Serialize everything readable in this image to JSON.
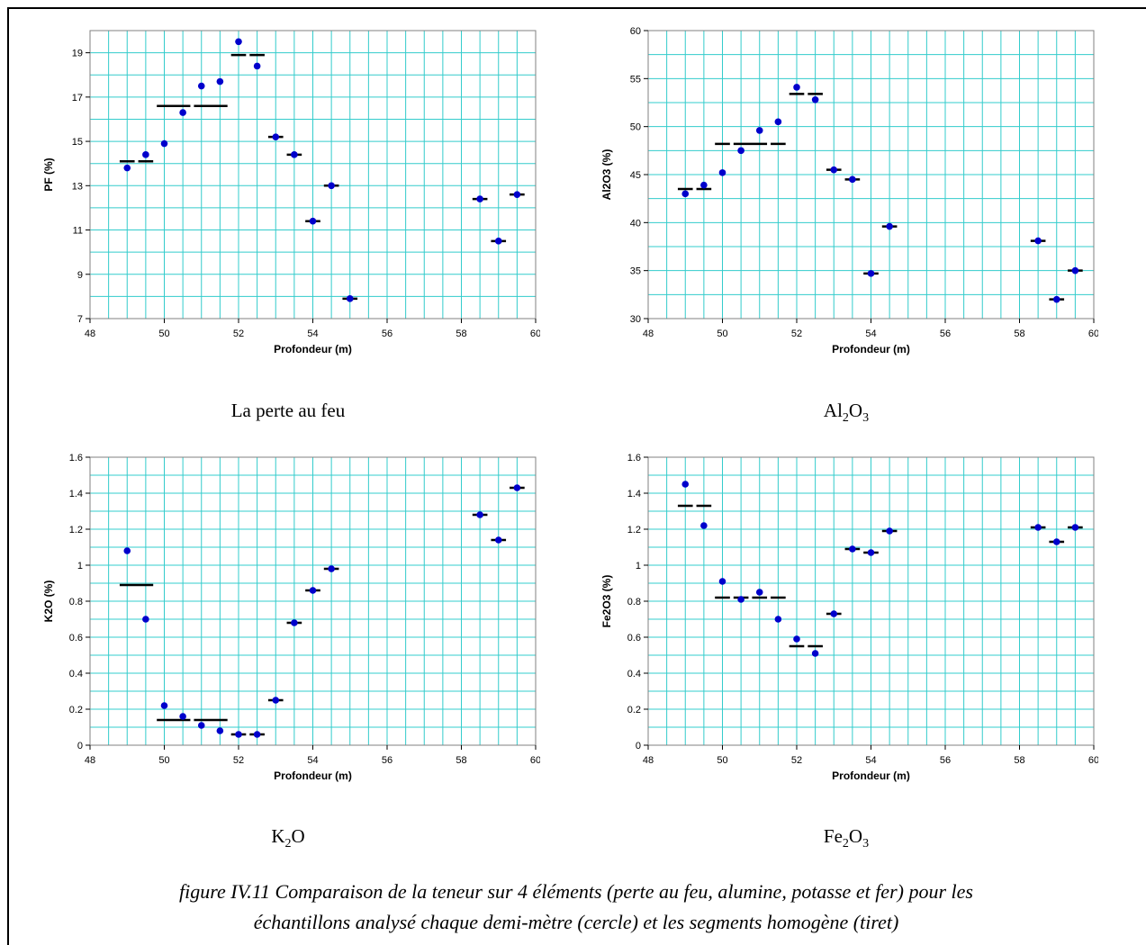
{
  "figure_caption": {
    "line1": "figure IV.11  Comparaison de la teneur sur 4 éléments (perte au feu, alumine, potasse et fer) pour les",
    "line2": "échantillons analysé chaque demi-mètre (cercle) et les segments homogène (tiret)"
  },
  "captions": [
    {
      "main": "La perte au feu",
      "parts": []
    },
    {
      "main": "",
      "parts": [
        [
          "Al",
          ""
        ],
        [
          "2",
          "sub"
        ],
        [
          "O",
          ""
        ],
        [
          "3",
          "sub"
        ]
      ]
    },
    {
      "main": "",
      "parts": [
        [
          "K",
          ""
        ],
        [
          "2",
          "sub"
        ],
        [
          "O",
          ""
        ]
      ]
    },
    {
      "main": "",
      "parts": [
        [
          "Fe",
          ""
        ],
        [
          "2",
          "sub"
        ],
        [
          "O",
          ""
        ],
        [
          "3",
          "sub"
        ]
      ]
    }
  ],
  "colors": {
    "grid": "#33CCCC",
    "point": "#0000CC",
    "segment": "#000000",
    "axis": "#808080"
  },
  "chart_data": [
    {
      "type": "scatter",
      "xlabel": "Profondeur (m)",
      "ylabel": "PF (%)",
      "xlim": [
        48,
        60
      ],
      "ylim": [
        7,
        20
      ],
      "xticks": [
        48,
        50,
        52,
        54,
        56,
        58,
        60
      ],
      "yticks": [
        7,
        9,
        11,
        13,
        15,
        17,
        19
      ],
      "ytick_labels": [
        "7",
        "9",
        "11",
        "13",
        "15",
        "17",
        "19"
      ],
      "grid_minor_x": 0.5,
      "grid_minor_y": 1,
      "points": [
        [
          49,
          13.8
        ],
        [
          49.5,
          14.4
        ],
        [
          50,
          14.9
        ],
        [
          50.5,
          16.3
        ],
        [
          51,
          17.5
        ],
        [
          51.5,
          17.7
        ],
        [
          52,
          19.5
        ],
        [
          52.5,
          18.4
        ],
        [
          53,
          15.2
        ],
        [
          53.5,
          14.4
        ],
        [
          54,
          11.4
        ],
        [
          54.5,
          13.0
        ],
        [
          55,
          7.9
        ],
        [
          58.5,
          12.4
        ],
        [
          59,
          10.5
        ],
        [
          59.5,
          12.6
        ]
      ],
      "segments": [
        [
          48.75,
          49.25,
          14.1
        ],
        [
          49.25,
          49.75,
          14.1
        ],
        [
          49.75,
          50.75,
          16.6
        ],
        [
          50.75,
          51.75,
          16.6
        ],
        [
          51.75,
          52.25,
          18.9
        ],
        [
          52.25,
          52.75,
          18.9
        ],
        [
          52.75,
          53.25,
          15.2
        ],
        [
          53.25,
          53.75,
          14.4
        ],
        [
          53.75,
          54.25,
          11.4
        ],
        [
          54.25,
          54.75,
          13.0
        ],
        [
          54.75,
          55.25,
          7.9
        ],
        [
          58.25,
          58.75,
          12.4
        ],
        [
          58.75,
          59.25,
          10.5
        ],
        [
          59.25,
          59.75,
          12.6
        ]
      ]
    },
    {
      "type": "scatter",
      "xlabel": "Profondeur (m)",
      "ylabel": "Al2O3 (%)",
      "xlim": [
        48,
        60
      ],
      "ylim": [
        30,
        60
      ],
      "xticks": [
        48,
        50,
        52,
        54,
        56,
        58,
        60
      ],
      "yticks": [
        30,
        35,
        40,
        45,
        50,
        55,
        60
      ],
      "ytick_labels": [
        "30",
        "35",
        "40",
        "45",
        "50",
        "55",
        "60"
      ],
      "grid_minor_x": 0.5,
      "grid_minor_y": 2.5,
      "points": [
        [
          49,
          43.0
        ],
        [
          49.5,
          43.9
        ],
        [
          50,
          45.2
        ],
        [
          50.5,
          47.5
        ],
        [
          51,
          49.6
        ],
        [
          51.5,
          50.5
        ],
        [
          52,
          54.1
        ],
        [
          52.5,
          52.8
        ],
        [
          53,
          45.5
        ],
        [
          53.5,
          44.5
        ],
        [
          54,
          34.7
        ],
        [
          54.5,
          39.6
        ],
        [
          58.5,
          38.1
        ],
        [
          59,
          32.0
        ],
        [
          59.5,
          35.0
        ]
      ],
      "segments": [
        [
          48.75,
          49.25,
          43.5
        ],
        [
          49.25,
          49.75,
          43.5
        ],
        [
          49.75,
          50.25,
          48.2
        ],
        [
          50.25,
          51.25,
          48.2
        ],
        [
          51.25,
          51.75,
          48.2
        ],
        [
          51.75,
          52.25,
          53.4
        ],
        [
          52.25,
          52.75,
          53.4
        ],
        [
          52.75,
          53.25,
          45.5
        ],
        [
          53.25,
          53.75,
          44.5
        ],
        [
          53.75,
          54.25,
          34.7
        ],
        [
          54.25,
          54.75,
          39.6
        ],
        [
          58.25,
          58.75,
          38.1
        ],
        [
          58.75,
          59.25,
          32.0
        ],
        [
          59.25,
          59.75,
          35.0
        ]
      ]
    },
    {
      "type": "scatter",
      "xlabel": "Profondeur (m)",
      "ylabel": "K2O (%)",
      "xlim": [
        48,
        60
      ],
      "ylim": [
        0,
        1.6
      ],
      "xticks": [
        48,
        50,
        52,
        54,
        56,
        58,
        60
      ],
      "yticks": [
        0,
        0.2,
        0.4,
        0.6,
        0.8,
        1,
        1.2,
        1.4,
        1.6
      ],
      "ytick_labels": [
        "0",
        "0.2",
        "0.4",
        "0.6",
        "0.8",
        "1",
        "1.2",
        "1.4",
        "1.6"
      ],
      "grid_minor_x": 0.5,
      "grid_minor_y": 0.1,
      "points": [
        [
          49,
          1.08
        ],
        [
          49.5,
          0.7
        ],
        [
          50,
          0.22
        ],
        [
          50.5,
          0.16
        ],
        [
          51,
          0.11
        ],
        [
          51.5,
          0.08
        ],
        [
          52,
          0.06
        ],
        [
          52.5,
          0.06
        ],
        [
          53,
          0.25
        ],
        [
          53.5,
          0.68
        ],
        [
          54,
          0.86
        ],
        [
          54.5,
          0.98
        ],
        [
          58.5,
          1.28
        ],
        [
          59,
          1.14
        ],
        [
          59.5,
          1.43
        ]
      ],
      "segments": [
        [
          48.75,
          49.75,
          0.89
        ],
        [
          49.75,
          50.75,
          0.14
        ],
        [
          50.75,
          51.75,
          0.14
        ],
        [
          51.75,
          52.25,
          0.06
        ],
        [
          52.25,
          52.75,
          0.06
        ],
        [
          52.75,
          53.25,
          0.25
        ],
        [
          53.25,
          53.75,
          0.68
        ],
        [
          53.75,
          54.25,
          0.86
        ],
        [
          54.25,
          54.75,
          0.98
        ],
        [
          58.25,
          58.75,
          1.28
        ],
        [
          58.75,
          59.25,
          1.14
        ],
        [
          59.25,
          59.75,
          1.43
        ]
      ]
    },
    {
      "type": "scatter",
      "xlabel": "Profondeur (m)",
      "ylabel": "Fe2O3 (%)",
      "xlim": [
        48,
        60
      ],
      "ylim": [
        0,
        1.6
      ],
      "xticks": [
        48,
        50,
        52,
        54,
        56,
        58,
        60
      ],
      "yticks": [
        0,
        0.2,
        0.4,
        0.6,
        0.8,
        1,
        1.2,
        1.4,
        1.6
      ],
      "ytick_labels": [
        "0",
        "0.2",
        "0.4",
        "0.6",
        "0.8",
        "1",
        "1.2",
        "1.4",
        "1.6"
      ],
      "grid_minor_x": 0.5,
      "grid_minor_y": 0.1,
      "points": [
        [
          49,
          1.45
        ],
        [
          49.5,
          1.22
        ],
        [
          50,
          0.91
        ],
        [
          50.5,
          0.81
        ],
        [
          51,
          0.85
        ],
        [
          51.5,
          0.7
        ],
        [
          52,
          0.59
        ],
        [
          52.5,
          0.51
        ],
        [
          53,
          0.73
        ],
        [
          53.5,
          1.09
        ],
        [
          54,
          1.07
        ],
        [
          54.5,
          1.19
        ],
        [
          58.5,
          1.21
        ],
        [
          59,
          1.13
        ],
        [
          59.5,
          1.21
        ]
      ],
      "segments": [
        [
          48.75,
          49.25,
          1.33
        ],
        [
          49.25,
          49.75,
          1.33
        ],
        [
          49.75,
          50.25,
          0.82
        ],
        [
          50.25,
          50.75,
          0.82
        ],
        [
          50.75,
          51.25,
          0.82
        ],
        [
          51.25,
          51.75,
          0.82
        ],
        [
          51.75,
          52.25,
          0.55
        ],
        [
          52.25,
          52.75,
          0.55
        ],
        [
          52.75,
          53.25,
          0.73
        ],
        [
          53.25,
          53.75,
          1.09
        ],
        [
          53.75,
          54.25,
          1.07
        ],
        [
          54.25,
          54.75,
          1.19
        ],
        [
          58.25,
          58.75,
          1.21
        ],
        [
          58.75,
          59.25,
          1.13
        ],
        [
          59.25,
          59.75,
          1.21
        ]
      ]
    }
  ]
}
